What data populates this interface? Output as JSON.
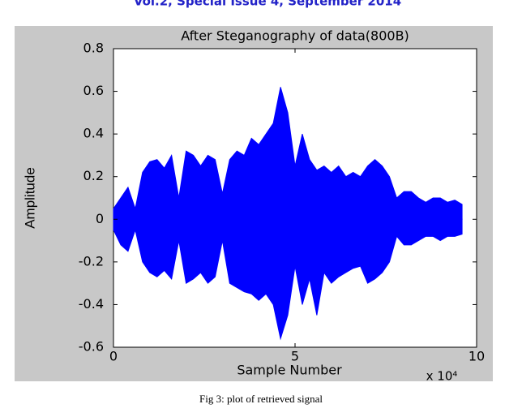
{
  "header": "Vol.2, Special Issue 4, September 2014",
  "caption": "Fig 3: plot of retrieved signal",
  "chart_data": {
    "type": "area",
    "title": "After Steganography of data(800B)",
    "x_label": "Sample Number",
    "y_label": "Amplitude",
    "x_multiplier": "x 10⁴",
    "x": [
      0,
      2000,
      4000,
      6000,
      8000,
      10000,
      12000,
      14000,
      16000,
      18000,
      20000,
      22000,
      24000,
      26000,
      28000,
      30000,
      32000,
      34000,
      36000,
      38000,
      40000,
      42000,
      44000,
      46000,
      48000,
      50000,
      52000,
      54000,
      56000,
      58000,
      60000,
      62000,
      64000,
      66000,
      68000,
      70000,
      72000,
      74000,
      76000,
      78000,
      80000,
      82000,
      84000,
      86000,
      88000,
      90000,
      92000,
      94000,
      96000
    ],
    "series": [
      {
        "color": "#0000ff",
        "values": [
          0.05,
          0.1,
          0.15,
          0.05,
          0.22,
          0.27,
          0.28,
          0.24,
          0.3,
          0.1,
          0.32,
          0.3,
          0.25,
          0.3,
          0.28,
          0.12,
          0.28,
          0.32,
          0.3,
          0.38,
          0.35,
          0.4,
          0.45,
          0.62,
          0.5,
          0.25,
          0.4,
          0.28,
          0.23,
          0.25,
          0.22,
          0.25,
          0.2,
          0.22,
          0.2,
          0.25,
          0.28,
          0.25,
          0.2,
          0.1,
          0.13,
          0.13,
          0.1,
          0.08,
          0.1,
          0.1,
          0.08,
          0.09,
          0.07
        ]
      },
      {
        "color": "#0000ff",
        "values": [
          -0.05,
          -0.12,
          -0.15,
          -0.05,
          -0.2,
          -0.25,
          -0.27,
          -0.24,
          -0.28,
          -0.1,
          -0.3,
          -0.28,
          -0.25,
          -0.3,
          -0.27,
          -0.1,
          -0.3,
          -0.32,
          -0.34,
          -0.35,
          -0.38,
          -0.35,
          -0.4,
          -0.56,
          -0.45,
          -0.22,
          -0.4,
          -0.28,
          -0.45,
          -0.25,
          -0.3,
          -0.27,
          -0.25,
          -0.23,
          -0.22,
          -0.3,
          -0.28,
          -0.25,
          -0.2,
          -0.08,
          -0.12,
          -0.12,
          -0.1,
          -0.08,
          -0.08,
          -0.1,
          -0.08,
          -0.08,
          -0.07
        ]
      }
    ],
    "xlim": [
      0,
      100000
    ],
    "xticks": [
      0,
      {
        "value": 50000,
        "label": "5"
      },
      {
        "value": 100000,
        "label": "10"
      }
    ],
    "ylim": [
      -0.6,
      0.8
    ],
    "yticks": [
      -0.6,
      -0.4,
      -0.2,
      0,
      0.2,
      0.4,
      0.6,
      0.8
    ]
  }
}
